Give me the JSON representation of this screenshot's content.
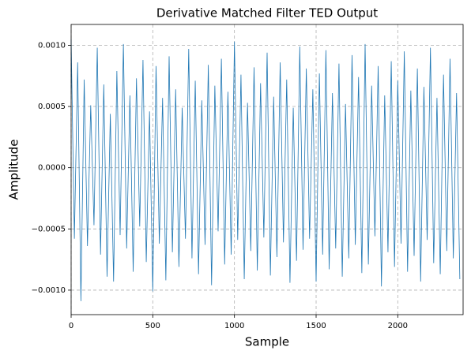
{
  "chart_data": {
    "type": "line",
    "title": "Derivative Matched Filter TED Output",
    "x_label": "Sample",
    "y_label": "Amplitude",
    "color": "#1f77b4",
    "grid": true,
    "xlim": [
      0,
      2400
    ],
    "ylim": [
      -0.0012,
      0.00117
    ],
    "xticks": [
      0,
      500,
      1000,
      1500,
      2000
    ],
    "yticks": [
      {
        "value": -0.001,
        "label": "−0.0010"
      },
      {
        "value": -0.0005,
        "label": "−0.0005"
      },
      {
        "value": 0,
        "label": "0.0000"
      },
      {
        "value": 0.0005,
        "label": "0.0005"
      },
      {
        "value": 0.001,
        "label": "0.0010"
      }
    ],
    "x": [
      0,
      20,
      40,
      60,
      80,
      100,
      120,
      140,
      160,
      180,
      200,
      220,
      240,
      260,
      280,
      300,
      320,
      340,
      360,
      380,
      400,
      420,
      440,
      460,
      480,
      500,
      520,
      540,
      560,
      580,
      600,
      620,
      640,
      660,
      680,
      700,
      720,
      740,
      760,
      780,
      800,
      820,
      840,
      860,
      880,
      900,
      920,
      940,
      960,
      980,
      1000,
      1020,
      1040,
      1060,
      1080,
      1100,
      1120,
      1140,
      1160,
      1180,
      1200,
      1220,
      1240,
      1260,
      1280,
      1300,
      1320,
      1340,
      1360,
      1380,
      1400,
      1420,
      1440,
      1460,
      1480,
      1500,
      1520,
      1540,
      1560,
      1580,
      1600,
      1620,
      1640,
      1660,
      1680,
      1700,
      1720,
      1740,
      1760,
      1780,
      1800,
      1820,
      1840,
      1860,
      1880,
      1900,
      1920,
      1940,
      1960,
      1980,
      2000,
      2020,
      2040,
      2060,
      2080,
      2100,
      2120,
      2140,
      2160,
      2180,
      2200,
      2220,
      2240,
      2260,
      2280,
      2300,
      2320,
      2340,
      2360,
      2380
    ],
    "values": [
      0.00105,
      -0.00058,
      0.00086,
      -0.00109,
      0.00072,
      -0.00064,
      0.00051,
      -0.00047,
      0.00098,
      -0.00071,
      0.00068,
      -0.00089,
      0.00044,
      -0.00093,
      0.00079,
      -0.00055,
      0.00101,
      -0.00066,
      0.00059,
      -0.00085,
      0.00073,
      -0.00048,
      0.00088,
      -0.00077,
      0.00046,
      -0.00101,
      0.00083,
      -0.00062,
      0.00057,
      -0.00092,
      0.00091,
      -0.00069,
      0.00064,
      -0.00081,
      0.00049,
      -0.00058,
      0.00097,
      -0.00074,
      0.00071,
      -0.00087,
      0.00055,
      -0.00063,
      0.00084,
      -0.00096,
      0.00067,
      -0.00052,
      0.00089,
      -0.00079,
      0.00062,
      -0.00071,
      0.00103,
      -0.00059,
      0.00076,
      -0.00091,
      0.00053,
      -0.00068,
      0.00082,
      -0.00084,
      0.00069,
      -0.00057,
      0.00094,
      -0.00088,
      0.00058,
      -0.00073,
      0.00086,
      -0.00061,
      0.00072,
      -0.00094,
      0.00049,
      -0.00076,
      0.00099,
      -0.00067,
      0.00081,
      -0.00058,
      0.00064,
      -0.00093,
      0.00077,
      -0.00071,
      0.00096,
      -0.00083,
      0.00061,
      -0.00066,
      0.00085,
      -0.00089,
      0.00052,
      -0.00074,
      0.00092,
      -0.00063,
      0.00074,
      -0.00086,
      0.00101,
      -0.00079,
      0.00067,
      -0.00056,
      0.00083,
      -0.00097,
      0.00059,
      -0.00069,
      0.00087,
      -0.00081,
      0.00071,
      -0.00062,
      0.00095,
      -0.00085,
      0.00063,
      -0.00072,
      0.00081,
      -0.00093,
      0.00066,
      -0.00059,
      0.00098,
      -0.00078,
      0.00057,
      -0.00087,
      0.00076,
      -0.00068,
      0.00089,
      -0.00074,
      0.00061,
      -0.00091
    ]
  }
}
